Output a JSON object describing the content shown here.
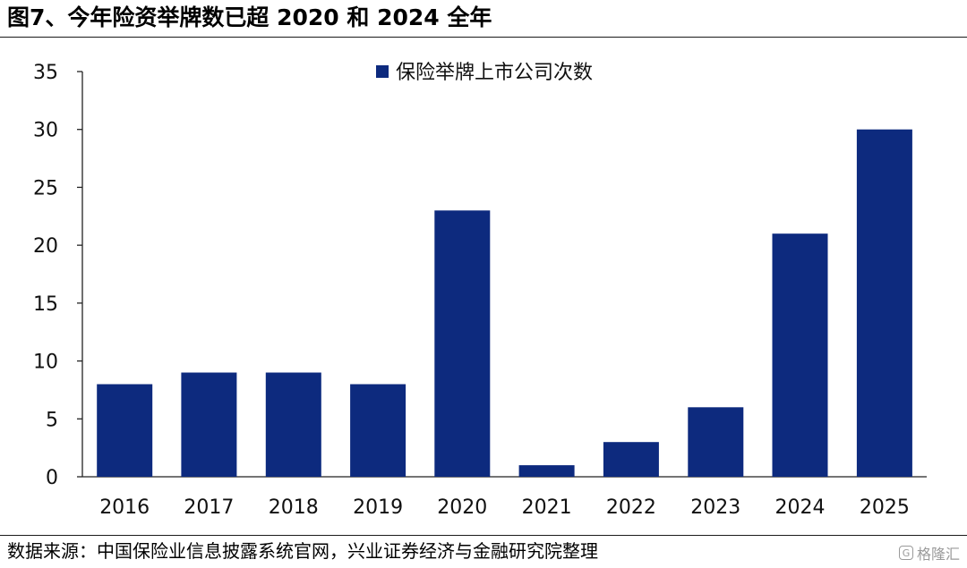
{
  "header": {
    "title": "图7、今年险资举牌数已超 2020 和 2024 全年"
  },
  "chart_data": {
    "type": "bar",
    "categories": [
      "2016",
      "2017",
      "2018",
      "2019",
      "2020",
      "2021",
      "2022",
      "2023",
      "2024",
      "2025"
    ],
    "series": [
      {
        "name": "保险举牌上市公司次数",
        "values": [
          8,
          9,
          9,
          8,
          23,
          1,
          3,
          6,
          21,
          30
        ],
        "color": "#0d2a7e"
      }
    ],
    "ylim": [
      0,
      35
    ],
    "yticks": [
      0,
      5,
      10,
      15,
      20,
      25,
      30,
      35
    ],
    "grid": false,
    "legend_position": "top-center"
  },
  "footer": {
    "source": "数据来源：中国保险业信息披露系统官网，兴业证券经济与金融研究院整理",
    "badge": "格隆汇",
    "badge_icon": "G"
  }
}
